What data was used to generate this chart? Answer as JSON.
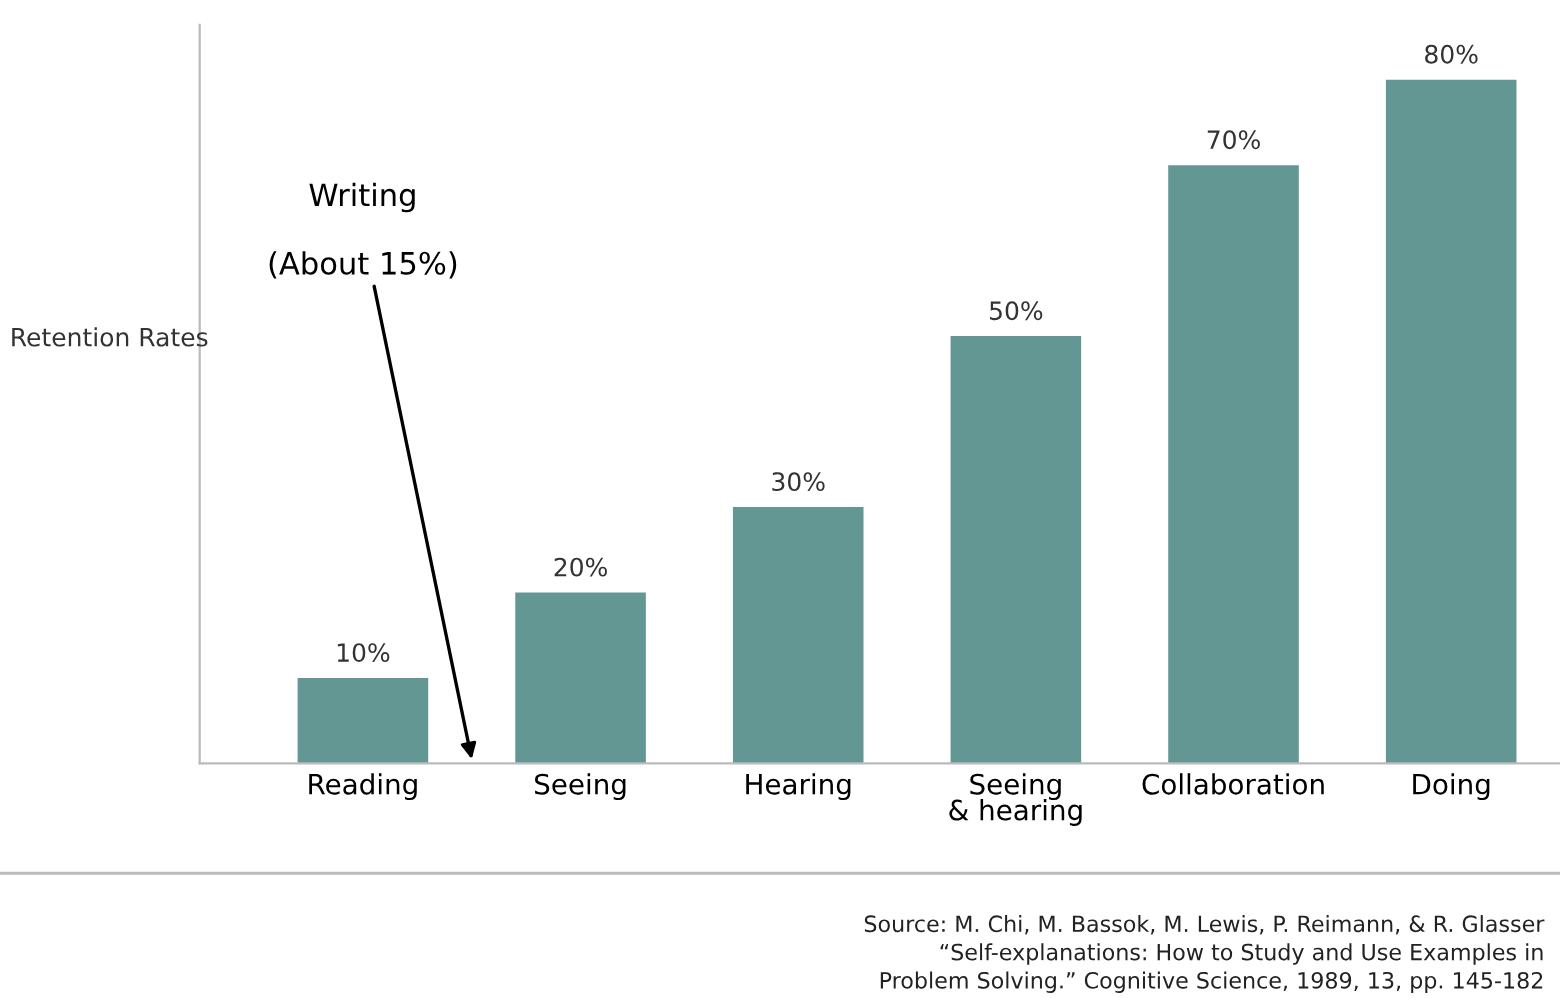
{
  "chart_data": {
    "type": "bar",
    "ylabel": "Retention Rates",
    "categories": [
      "Reading",
      "Seeing",
      "Hearing",
      "Seeing\n& hearing",
      "Collaboration",
      "Doing"
    ],
    "values": [
      10,
      20,
      30,
      50,
      70,
      80
    ],
    "color": "#629794",
    "value_labels": [
      "10%",
      "20%",
      "30%",
      "50%",
      "70%",
      "80%"
    ],
    "grid": false,
    "legend": false,
    "annotations": [
      "Writing\n\n(About 15%)",
      "Source: M. Chi, M. Bassok, M. Lewis, P. Reimann, & R. Glasser\n“Self-explanations: How to Study and Use Examples in\nProblem Solving.” Cognitive Science, 1989, 13, pp. 145-182"
    ]
  }
}
